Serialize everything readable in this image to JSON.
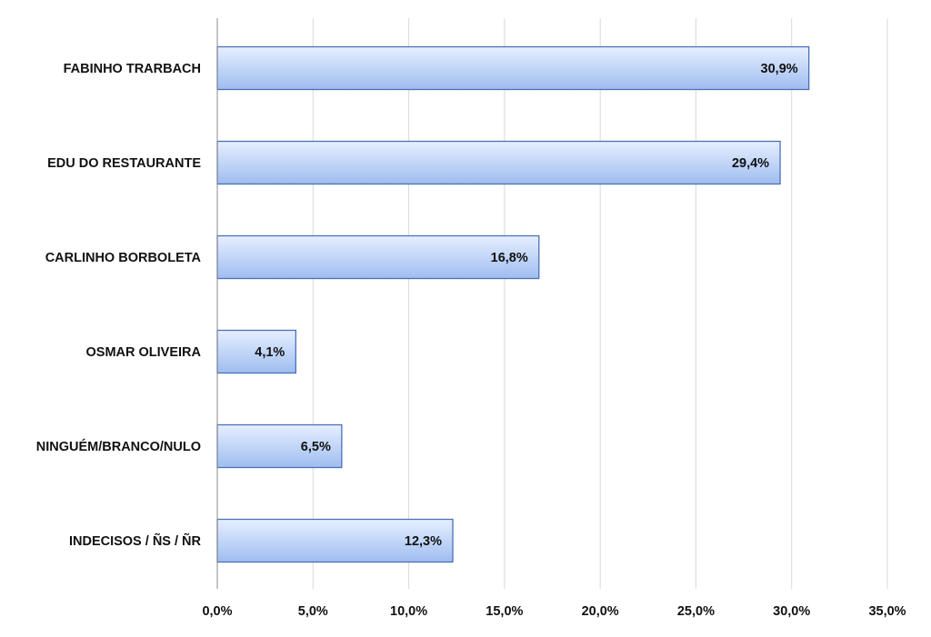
{
  "chart_data": {
    "type": "bar",
    "orientation": "horizontal",
    "categories": [
      "FABINHO TRARBACH",
      "EDU DO RESTAURANTE",
      "CARLINHO BORBOLETA",
      "OSMAR OLIVEIRA",
      "NINGUÉM/BRANCO/NULO",
      "INDECISOS / ÑS / ÑR"
    ],
    "values": [
      30.9,
      29.4,
      16.8,
      4.1,
      6.5,
      12.3
    ],
    "value_labels": [
      "30,9%",
      "29,4%",
      "16,8%",
      "4,1%",
      "6,5%",
      "12,3%"
    ],
    "x_ticks": [
      0,
      5,
      10,
      15,
      20,
      25,
      30,
      35
    ],
    "x_tick_labels": [
      "0,0%",
      "5,0%",
      "10,0%",
      "15,0%",
      "20,0%",
      "25,0%",
      "30,0%",
      "35,0%"
    ],
    "xlim": [
      0,
      35
    ],
    "grid": "vertical",
    "legend": "none",
    "colors": {
      "bar_fill_light": "#e6efff",
      "bar_fill_dark": "#9fbdf0",
      "bar_stroke": "#4a72b8",
      "grid": "#d9d9d9",
      "axis": "#8c8c8c"
    }
  }
}
